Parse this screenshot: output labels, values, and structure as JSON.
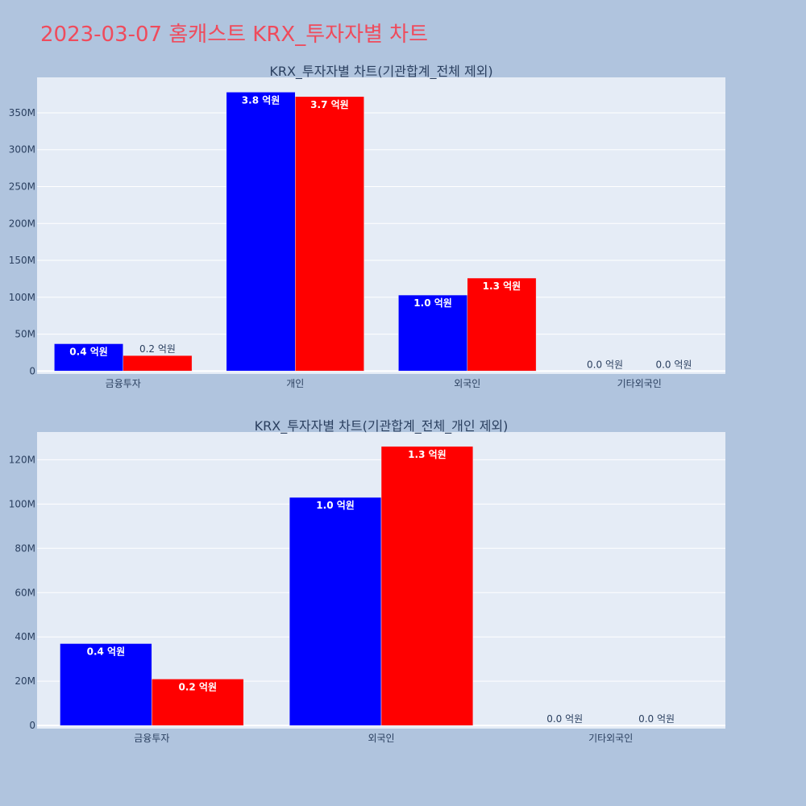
{
  "page": {
    "title": "2023-03-07 홈캐스트 KRX_투자자별 차트",
    "background": "#b0c4de",
    "title_color": "#ef4b5c",
    "plot_background": "#e5ecf6"
  },
  "chart_data": [
    {
      "type": "bar",
      "title": "KRX_투자자별 차트(기관합계_전체 제외)",
      "categories": [
        "금융투자",
        "개인",
        "외국인",
        "기타외국인"
      ],
      "series": [
        {
          "color": "#0000ff",
          "values": [
            37000000,
            378000000,
            103000000,
            0
          ],
          "labels": [
            "0.4 억원",
            "3.8 억원",
            "1.0 억원",
            "0.0 억원"
          ]
        },
        {
          "color": "#ff0000",
          "values": [
            21000000,
            372000000,
            126000000,
            0
          ],
          "labels": [
            "0.2 억원",
            "3.7 억원",
            "1.3 억원",
            "0.0 억원"
          ]
        }
      ],
      "ylim": [
        -4000000,
        398000000
      ],
      "yticks": [
        0,
        50000000,
        100000000,
        150000000,
        200000000,
        250000000,
        300000000,
        350000000
      ],
      "ytick_labels": [
        "0",
        "50M",
        "100M",
        "150M",
        "200M",
        "250M",
        "300M",
        "350M"
      ],
      "grid": true
    },
    {
      "type": "bar",
      "title": "KRX_투자자별 차트(기관합계_전체_개인 제외)",
      "categories": [
        "금융투자",
        "외국인",
        "기타외국인"
      ],
      "series": [
        {
          "color": "#0000ff",
          "values": [
            37000000,
            103000000,
            0
          ],
          "labels": [
            "0.4 억원",
            "1.0 억원",
            "0.0 억원"
          ]
        },
        {
          "color": "#ff0000",
          "values": [
            21000000,
            126000000,
            0
          ],
          "labels": [
            "0.2 억원",
            "1.3 억원",
            "0.0 억원"
          ]
        }
      ],
      "ylim": [
        -1400000,
        132500000
      ],
      "yticks": [
        0,
        20000000,
        40000000,
        60000000,
        80000000,
        100000000,
        120000000
      ],
      "ytick_labels": [
        "0",
        "20M",
        "40M",
        "60M",
        "80M",
        "100M",
        "120M"
      ],
      "grid": true
    }
  ]
}
